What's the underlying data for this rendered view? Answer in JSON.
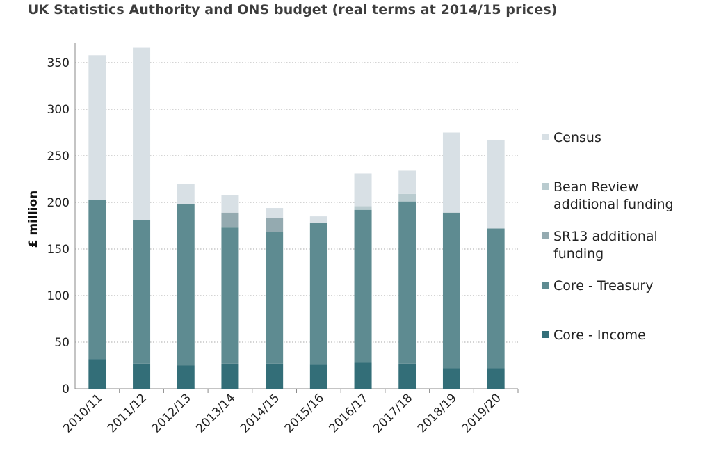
{
  "chart_data": {
    "type": "bar",
    "stacked": true,
    "title": "UK Statistics Authority and ONS budget (real terms at 2014/15 prices)",
    "xlabel": "",
    "ylabel": "£ million",
    "ylim": [
      0,
      375
    ],
    "yticks": [
      0,
      50,
      100,
      150,
      200,
      250,
      300,
      350
    ],
    "grid": "horizontal dotted",
    "legend_position": "right",
    "categories": [
      "2010/11",
      "2011/12",
      "2012/13",
      "2013/14",
      "2014/15",
      "2015/16",
      "2016/17",
      "2017/18",
      "2018/19",
      "2019/20"
    ],
    "series": [
      {
        "name": "Core - Income",
        "color": "#336e78",
        "values": [
          32,
          27,
          25,
          27,
          27,
          26,
          28,
          27,
          22,
          22
        ]
      },
      {
        "name": "Core - Treasury",
        "color": "#5e8b91",
        "values": [
          171,
          154,
          173,
          146,
          141,
          152,
          164,
          174,
          167,
          150
        ]
      },
      {
        "name": "SR13 additional funding",
        "color": "#94aab0",
        "values": [
          0,
          0,
          0,
          16,
          15,
          0,
          0,
          0,
          0,
          0
        ]
      },
      {
        "name": "Bean Review additional funding",
        "color": "#b9cbcf",
        "values": [
          0,
          0,
          0,
          0,
          0,
          0,
          4,
          8,
          0,
          0
        ]
      },
      {
        "name": "Census",
        "color": "#d8e0e5",
        "values": [
          155,
          185,
          22,
          19,
          11,
          7,
          35,
          25,
          86,
          95
        ]
      }
    ]
  }
}
